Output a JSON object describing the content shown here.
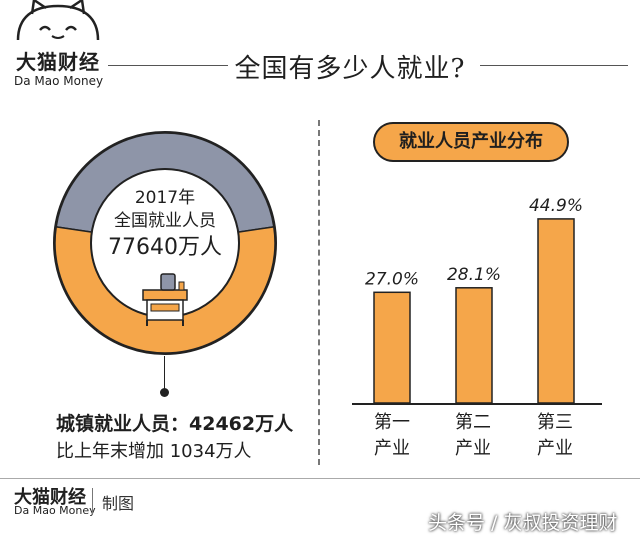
{
  "brand": {
    "name_cn": "大猫财经",
    "name_en": "Da Mao Money"
  },
  "title": "全国有多少人就业?",
  "donut": {
    "year": "2017年",
    "label": "全国就业人员",
    "total": "77640万人",
    "colors": {
      "urban": "#f5a64a",
      "other": "#8e95a8"
    },
    "urban_value": 42462,
    "total_value": 77640,
    "annotation_line1": "城镇就业人员：42462万人",
    "annotation_line2": "比上年末增加 1034万人"
  },
  "chart_data": {
    "type": "bar",
    "title": "就业人员产业分布",
    "categories": [
      "第一\n产业",
      "第二\n产业",
      "第三\n产业"
    ],
    "values": [
      27.0,
      28.1,
      44.9
    ],
    "value_labels": [
      "27.0%",
      "28.1%",
      "44.9%"
    ],
    "ylim": [
      0,
      50
    ],
    "bar_color": "#f5a64a",
    "grid": false
  },
  "footer": {
    "brand_cn": "大猫财经",
    "brand_en": "Da Mao Money",
    "made": "制图",
    "watermark": "头条号 / 灰叔投资理财"
  }
}
